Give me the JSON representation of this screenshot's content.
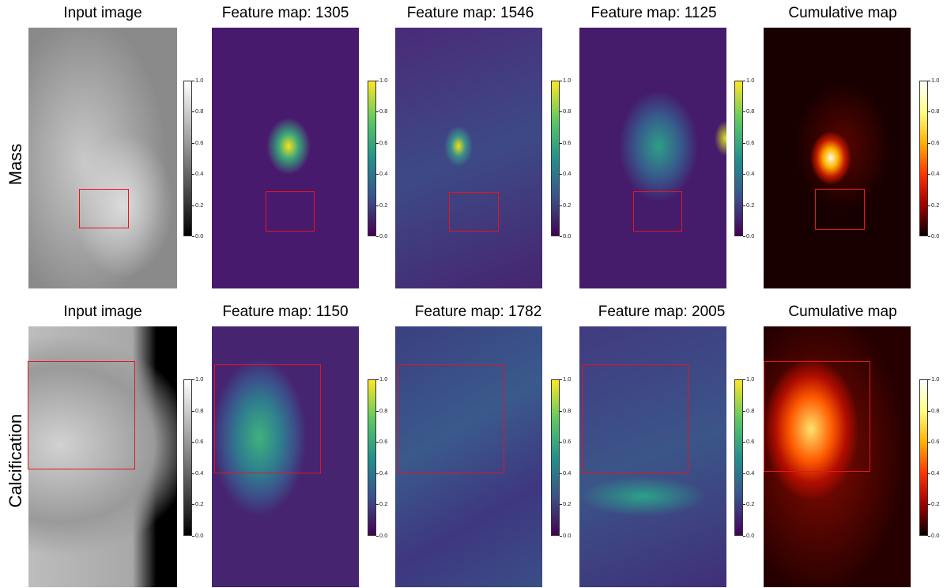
{
  "rows": [
    {
      "label": "Mass",
      "panels": [
        {
          "title": "Input image",
          "kind": "mammogram",
          "colormap": "gray"
        },
        {
          "title": "Feature map: 1305",
          "kind": "feature-map",
          "colormap": "viridis"
        },
        {
          "title": "Feature map: 1546",
          "kind": "feature-map",
          "colormap": "viridis"
        },
        {
          "title": "Feature map: 1125",
          "kind": "feature-map",
          "colormap": "viridis"
        },
        {
          "title": "Cumulative map",
          "kind": "cumulative-map",
          "colormap": "hot"
        }
      ]
    },
    {
      "label": "Calcification",
      "panels": [
        {
          "title": "Input image",
          "kind": "mammogram",
          "colormap": "gray"
        },
        {
          "title": "Feature map: 1150",
          "kind": "feature-map",
          "colormap": "viridis"
        },
        {
          "title": "Feature map: 1782",
          "kind": "feature-map",
          "colormap": "viridis"
        },
        {
          "title": "Feature map: 2005",
          "kind": "feature-map",
          "colormap": "viridis"
        },
        {
          "title": "Cumulative map",
          "kind": "cumulative-map",
          "colormap": "hot"
        }
      ]
    }
  ],
  "colorbar_ticks": [
    "1.0",
    "0.8",
    "0.6",
    "0.4",
    "0.2",
    "0.0"
  ],
  "roi_color": "#e8141b"
}
